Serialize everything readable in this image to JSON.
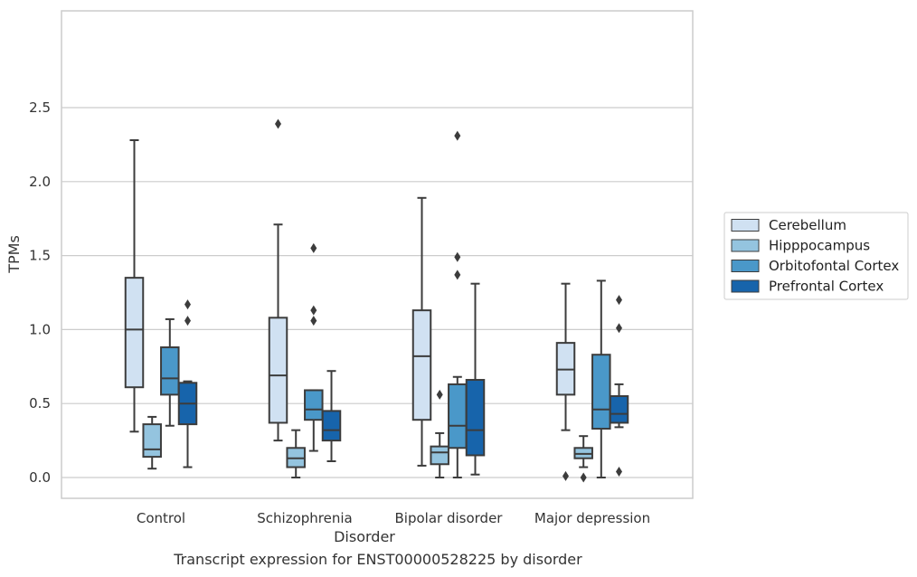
{
  "caption": "Transcript expression for ENST00000528225 by disorder",
  "chart_data": {
    "type": "boxplot",
    "xlabel": "Disorder",
    "ylabel": "TPMs",
    "ylim": [
      -0.12,
      2.52
    ],
    "yticks": [
      "0.0",
      "0.5",
      "1.0",
      "1.5",
      "2.0",
      "2.5"
    ],
    "grid": "horizontal",
    "legend_position": "right",
    "categories": [
      "Control",
      "Schizophrenia",
      "Bipolar disorder",
      "Major depression"
    ],
    "series": [
      {
        "name": "Cerebellum",
        "color": "#d0e1f2",
        "boxes": [
          {
            "whislo": 0.31,
            "q1": 0.61,
            "med": 1.0,
            "q3": 1.35,
            "whishi": 2.28,
            "fliers": []
          },
          {
            "whislo": 0.25,
            "q1": 0.37,
            "med": 0.69,
            "q3": 1.08,
            "whishi": 1.71,
            "fliers": [
              2.39
            ]
          },
          {
            "whislo": 0.08,
            "q1": 0.39,
            "med": 0.82,
            "q3": 1.13,
            "whishi": 1.89,
            "fliers": []
          },
          {
            "whislo": 0.32,
            "q1": 0.56,
            "med": 0.73,
            "q3": 0.91,
            "whishi": 1.31,
            "fliers": [
              0.01
            ]
          }
        ]
      },
      {
        "name": "Hipppocampus",
        "color": "#94c4df",
        "boxes": [
          {
            "whislo": 0.06,
            "q1": 0.14,
            "med": 0.19,
            "q3": 0.36,
            "whishi": 0.41,
            "fliers": []
          },
          {
            "whislo": 0.0,
            "q1": 0.07,
            "med": 0.13,
            "q3": 0.2,
            "whishi": 0.32,
            "fliers": []
          },
          {
            "whislo": 0.0,
            "q1": 0.09,
            "med": 0.17,
            "q3": 0.21,
            "whishi": 0.3,
            "fliers": [
              0.56
            ]
          },
          {
            "whislo": 0.07,
            "q1": 0.13,
            "med": 0.16,
            "q3": 0.2,
            "whishi": 0.28,
            "fliers": [
              0.0
            ]
          }
        ]
      },
      {
        "name": "Orbitofontal Cortex",
        "color": "#4a98c9",
        "boxes": [
          {
            "whislo": 0.35,
            "q1": 0.56,
            "med": 0.67,
            "q3": 0.88,
            "whishi": 1.07,
            "fliers": []
          },
          {
            "whislo": 0.18,
            "q1": 0.39,
            "med": 0.46,
            "q3": 0.59,
            "whishi": 0.59,
            "fliers": [
              1.06,
              1.13,
              1.55
            ]
          },
          {
            "whislo": 0.0,
            "q1": 0.2,
            "med": 0.35,
            "q3": 0.63,
            "whishi": 0.68,
            "fliers": [
              1.37,
              1.49,
              2.31
            ]
          },
          {
            "whislo": 0.0,
            "q1": 0.33,
            "med": 0.46,
            "q3": 0.83,
            "whishi": 1.33,
            "fliers": []
          }
        ]
      },
      {
        "name": "Prefrontal Cortex",
        "color": "#1764ab",
        "boxes": [
          {
            "whislo": 0.07,
            "q1": 0.36,
            "med": 0.5,
            "q3": 0.64,
            "whishi": 0.65,
            "fliers": [
              1.06,
              1.17
            ]
          },
          {
            "whislo": 0.11,
            "q1": 0.25,
            "med": 0.32,
            "q3": 0.45,
            "whishi": 0.72,
            "fliers": []
          },
          {
            "whislo": 0.02,
            "q1": 0.15,
            "med": 0.32,
            "q3": 0.66,
            "whishi": 1.31,
            "fliers": []
          },
          {
            "whislo": 0.34,
            "q1": 0.37,
            "med": 0.43,
            "q3": 0.55,
            "whishi": 0.63,
            "fliers": [
              0.04,
              1.01,
              1.2
            ]
          }
        ]
      }
    ]
  }
}
